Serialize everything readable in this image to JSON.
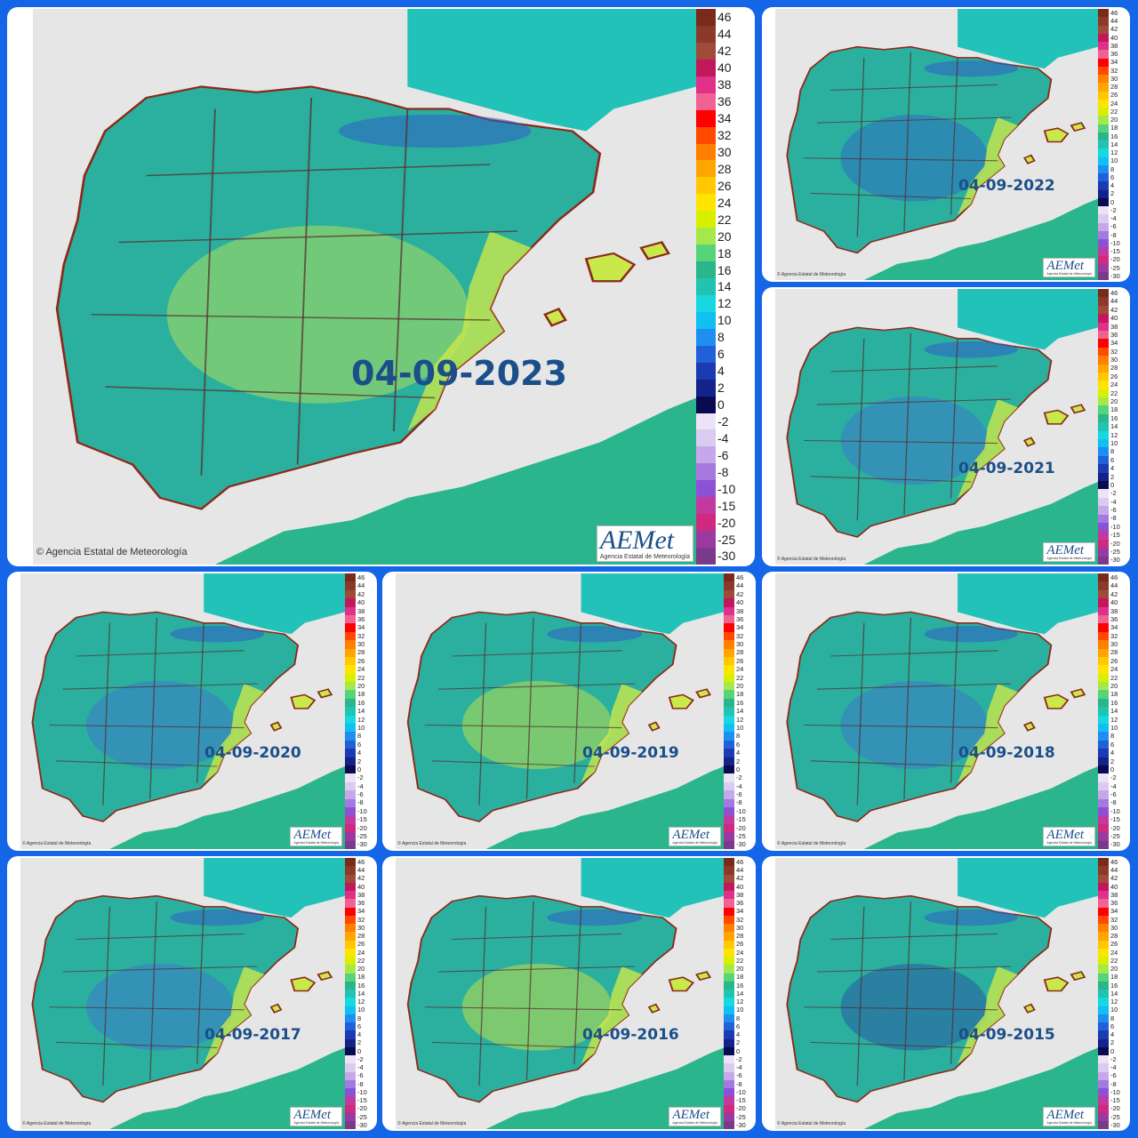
{
  "panels": [
    {
      "id": "p2023",
      "date": "04-09-2023",
      "big": true,
      "tint": "#c9e84a"
    },
    {
      "id": "p2022",
      "date": "04-09-2022",
      "big": false,
      "tint": "#2f5fc4"
    },
    {
      "id": "p2021",
      "date": "04-09-2021",
      "big": false,
      "tint": "#3f6fd0"
    },
    {
      "id": "p2020",
      "date": "04-09-2020",
      "big": false,
      "tint": "#3f6fd0"
    },
    {
      "id": "p2019",
      "date": "04-09-2019",
      "big": false,
      "tint": "#d8e83a"
    },
    {
      "id": "p2018",
      "date": "04-09-2018",
      "big": false,
      "tint": "#3f6fd0"
    },
    {
      "id": "p2017",
      "date": "04-09-2017",
      "big": false,
      "tint": "#3f6fd0"
    },
    {
      "id": "p2016",
      "date": "04-09-2016",
      "big": false,
      "tint": "#e0e832"
    },
    {
      "id": "p2015",
      "date": "04-09-2015",
      "big": false,
      "tint": "#27479f"
    }
  ],
  "copyright": "© Agencia Estatal de Meteorología",
  "logo": {
    "name": "AEMet",
    "sub": "Agencia Estatal de Meteorología"
  },
  "legend": [
    {
      "label": "46",
      "color": "#7a2a1a"
    },
    {
      "label": "44",
      "color": "#8b3a2a"
    },
    {
      "label": "42",
      "color": "#a04a3a"
    },
    {
      "label": "40",
      "color": "#c2185b"
    },
    {
      "label": "38",
      "color": "#e0308a"
    },
    {
      "label": "36",
      "color": "#f06292"
    },
    {
      "label": "34",
      "color": "#ff0000"
    },
    {
      "label": "32",
      "color": "#ff4a00"
    },
    {
      "label": "30",
      "color": "#ff7f00"
    },
    {
      "label": "28",
      "color": "#ffa500"
    },
    {
      "label": "26",
      "color": "#ffc800"
    },
    {
      "label": "24",
      "color": "#ffe400"
    },
    {
      "label": "22",
      "color": "#d8f000"
    },
    {
      "label": "20",
      "color": "#a6e84a"
    },
    {
      "label": "18",
      "color": "#55d47a"
    },
    {
      "label": "16",
      "color": "#2bb58c"
    },
    {
      "label": "14",
      "color": "#20c4b0"
    },
    {
      "label": "12",
      "color": "#17d8e0"
    },
    {
      "label": "10",
      "color": "#0fc0f0"
    },
    {
      "label": "8",
      "color": "#1e8ff0"
    },
    {
      "label": "6",
      "color": "#2060d8"
    },
    {
      "label": "4",
      "color": "#1a3cb0"
    },
    {
      "label": "2",
      "color": "#13238a"
    },
    {
      "label": "0",
      "color": "#0a0a50"
    },
    {
      "label": "-2",
      "color": "#ece4f6"
    },
    {
      "label": "-4",
      "color": "#dccbf0"
    },
    {
      "label": "-6",
      "color": "#c6a8ea"
    },
    {
      "label": "-8",
      "color": "#a679e0"
    },
    {
      "label": "-10",
      "color": "#8c52d6"
    },
    {
      "label": "-15",
      "color": "#c03aa0"
    },
    {
      "label": "-20",
      "color": "#d02a80"
    },
    {
      "label": "-25",
      "color": "#9a3aa0"
    },
    {
      "label": "-30",
      "color": "#7a3a8a"
    }
  ]
}
